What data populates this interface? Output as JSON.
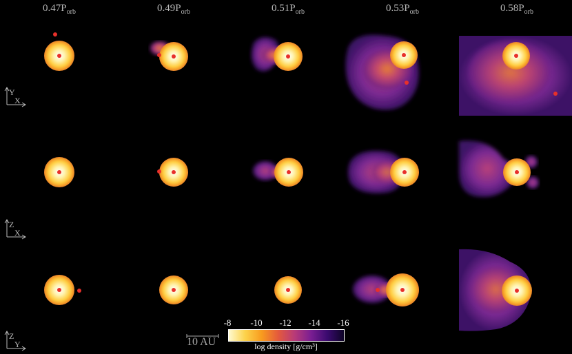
{
  "columns": [
    {
      "main": "0.47P",
      "sub": "orb"
    },
    {
      "main": "0.49P",
      "sub": "orb"
    },
    {
      "main": "0.51P",
      "sub": "orb"
    },
    {
      "main": "0.53P",
      "sub": "orb"
    },
    {
      "main": "0.58P",
      "sub": "orb"
    }
  ],
  "axes": [
    {
      "vertical": "Y",
      "horizontal": "X"
    },
    {
      "vertical": "Z",
      "horizontal": "X"
    },
    {
      "vertical": "Z",
      "horizontal": "Y"
    }
  ],
  "scale_bar": "10 AU",
  "colorbar": {
    "ticks": [
      "-8",
      "-10",
      "-12",
      "-14",
      "-16"
    ],
    "label": "log density [g/cm³]"
  },
  "colors": {
    "star_core": "#fffbe0",
    "star_mid": "#ffd040",
    "star_edge": "#f2972a",
    "companion": "#e8302a",
    "gas_inner": "#d75a4a",
    "gas_outer": "#5a1c7a"
  }
}
